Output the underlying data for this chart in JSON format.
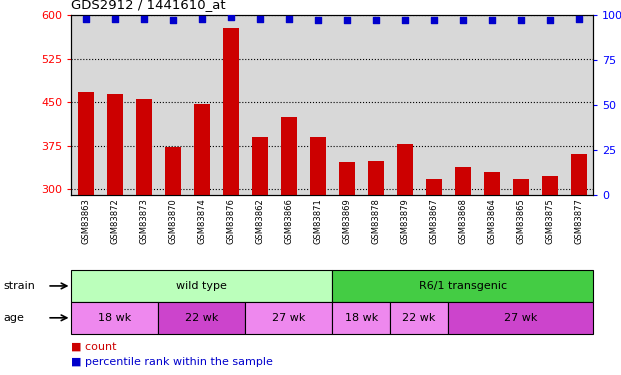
{
  "title": "GDS2912 / 1441610_at",
  "samples": [
    "GSM83863",
    "GSM83872",
    "GSM83873",
    "GSM83870",
    "GSM83874",
    "GSM83876",
    "GSM83862",
    "GSM83866",
    "GSM83871",
    "GSM83869",
    "GSM83878",
    "GSM83879",
    "GSM83867",
    "GSM83868",
    "GSM83864",
    "GSM83865",
    "GSM83875",
    "GSM83877"
  ],
  "counts": [
    468,
    464,
    455,
    372,
    447,
    578,
    390,
    425,
    390,
    347,
    348,
    378,
    318,
    338,
    330,
    317,
    323,
    360
  ],
  "percentiles": [
    98,
    98,
    98,
    97,
    98,
    99,
    98,
    98,
    97,
    97,
    97,
    97,
    97,
    97,
    97,
    97,
    97,
    98
  ],
  "ylim_left": [
    290,
    600
  ],
  "ylim_right": [
    0,
    100
  ],
  "yticks_left": [
    300,
    375,
    450,
    525,
    600
  ],
  "yticks_right": [
    0,
    25,
    50,
    75,
    100
  ],
  "bar_color": "#cc0000",
  "dot_color": "#0000cc",
  "bg_color": "#d8d8d8",
  "plot_bg": "#ffffff",
  "strain_groups": [
    {
      "label": "wild type",
      "start": 0,
      "end": 9,
      "color": "#bbffbb"
    },
    {
      "label": "R6/1 transgenic",
      "start": 9,
      "end": 18,
      "color": "#44cc44"
    }
  ],
  "age_groups": [
    {
      "label": "18 wk",
      "start": 0,
      "end": 3,
      "color": "#ee88ee"
    },
    {
      "label": "22 wk",
      "start": 3,
      "end": 6,
      "color": "#cc44cc"
    },
    {
      "label": "27 wk",
      "start": 6,
      "end": 9,
      "color": "#ee88ee"
    },
    {
      "label": "18 wk",
      "start": 9,
      "end": 11,
      "color": "#ee88ee"
    },
    {
      "label": "22 wk",
      "start": 11,
      "end": 13,
      "color": "#ee88ee"
    },
    {
      "label": "27 wk",
      "start": 13,
      "end": 18,
      "color": "#cc44cc"
    }
  ],
  "strain_label": "strain",
  "age_label": "age",
  "legend": [
    {
      "label": "count",
      "color": "#cc0000"
    },
    {
      "label": "percentile rank within the sample",
      "color": "#0000cc"
    }
  ]
}
